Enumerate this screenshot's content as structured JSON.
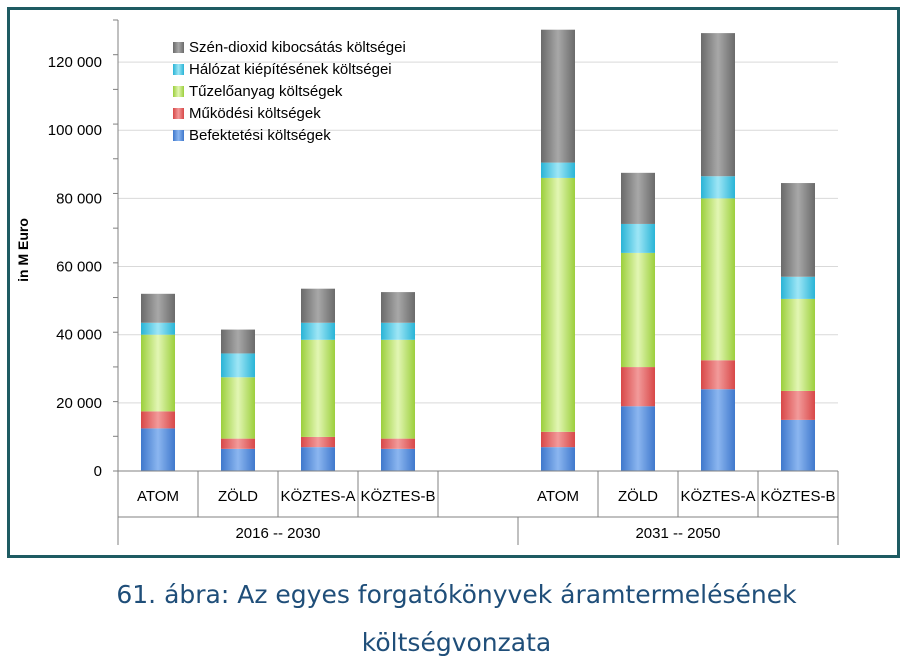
{
  "chart_data": {
    "type": "bar",
    "stacked": true,
    "ylabel": "in M Euro",
    "ylim": [
      0,
      130000
    ],
    "yticks": [
      "0",
      "20 000",
      "40 000",
      "60 000",
      "80 000",
      "100 000",
      "120 000"
    ],
    "ytick_values": [
      0,
      20000,
      40000,
      60000,
      80000,
      100000,
      120000
    ],
    "grid": true,
    "legend_position": "top-left",
    "groups": [
      {
        "label": "2016 -- 2030",
        "categories": [
          "ATOM",
          "ZÖLD",
          "KÖZTES-A",
          "KÖZTES-B"
        ]
      },
      {
        "label": "2031 -- 2050",
        "categories": [
          "ATOM",
          "ZÖLD",
          "KÖZTES-A",
          "KÖZTES-B"
        ]
      }
    ],
    "series": [
      {
        "name": "Befektetési költségek",
        "color": "#4a86d8",
        "values": [
          12500,
          6500,
          7000,
          6500,
          7000,
          19000,
          24000,
          15000
        ]
      },
      {
        "name": "Működési költségek",
        "color": "#e05555",
        "values": [
          5000,
          3000,
          3000,
          3000,
          4500,
          11500,
          8500,
          8500
        ]
      },
      {
        "name": "Tűzelőanyag költségek",
        "color": "#a6d84a",
        "values": [
          22500,
          18000,
          28500,
          29000,
          74500,
          33500,
          47500,
          27000
        ]
      },
      {
        "name": "Hálózat kiépítésének költségei",
        "color": "#3ec3e0",
        "values": [
          3500,
          7000,
          5000,
          5000,
          4500,
          8500,
          6500,
          6500
        ]
      },
      {
        "name": "Szén-dioxid kibocsátás költségei",
        "color": "#7a7a7a",
        "values": [
          8500,
          7000,
          10000,
          9000,
          39000,
          15000,
          42000,
          27500
        ]
      }
    ],
    "legend_order": [
      "Szén-dioxid kibocsátás költségei",
      "Hálózat kiépítésének költségei",
      "Tűzelőanyag költségek",
      "Működési költségek",
      "Befektetési költségek"
    ]
  },
  "caption": {
    "line1": "61.  ábra:   Az egyes forgatókönyvek áramtermelésének",
    "line2": "költségvonzata"
  }
}
